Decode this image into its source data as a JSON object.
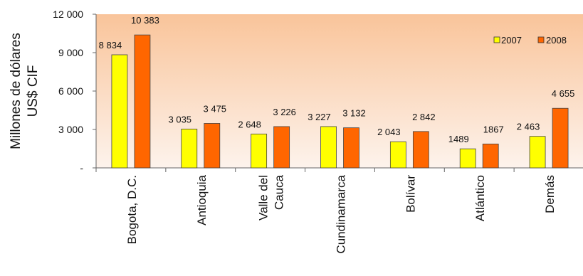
{
  "chart_data": {
    "type": "bar",
    "title": "",
    "xlabel": "",
    "ylabel": [
      "Millones de dólares",
      "US$ CIF"
    ],
    "ylim": [
      0,
      12000
    ],
    "yticks": [
      0,
      3000,
      6000,
      9000,
      12000
    ],
    "ytick_labels": [
      "-",
      "3 000",
      "6 000",
      "9 000",
      "12 000"
    ],
    "categories": [
      "Bogota, D.C.",
      "Antioquia",
      "Valle del Cauca",
      "Cundinamarca",
      "Bolívar",
      "Atlántico",
      "Demás"
    ],
    "category_label_lines": [
      [
        "Bogota, D.C."
      ],
      [
        "Antioquia"
      ],
      [
        "Valle del",
        "Cauca"
      ],
      [
        "Cundinamarca"
      ],
      [
        "Bolívar"
      ],
      [
        "Atlántico"
      ],
      [
        "Demás"
      ]
    ],
    "series": [
      {
        "name": "2007",
        "color": "#ffff00",
        "values": [
          8834,
          3035,
          2648,
          3227,
          2043,
          1489,
          2463
        ],
        "labels": [
          "8 834",
          "3 035",
          "2 648",
          "3 227",
          "2 043",
          "1489",
          "2 463"
        ]
      },
      {
        "name": "2008",
        "color": "#ff6600",
        "values": [
          10383,
          3475,
          3226,
          3132,
          2842,
          1867,
          4655
        ],
        "labels": [
          "10 383",
          "3 475",
          "3 226",
          "3 132",
          "2 842",
          "1867",
          "4 655"
        ]
      }
    ],
    "legend_position": "top-right",
    "grid": false,
    "background_gradient": [
      "#f9c49a",
      "#fdf3ec"
    ]
  }
}
